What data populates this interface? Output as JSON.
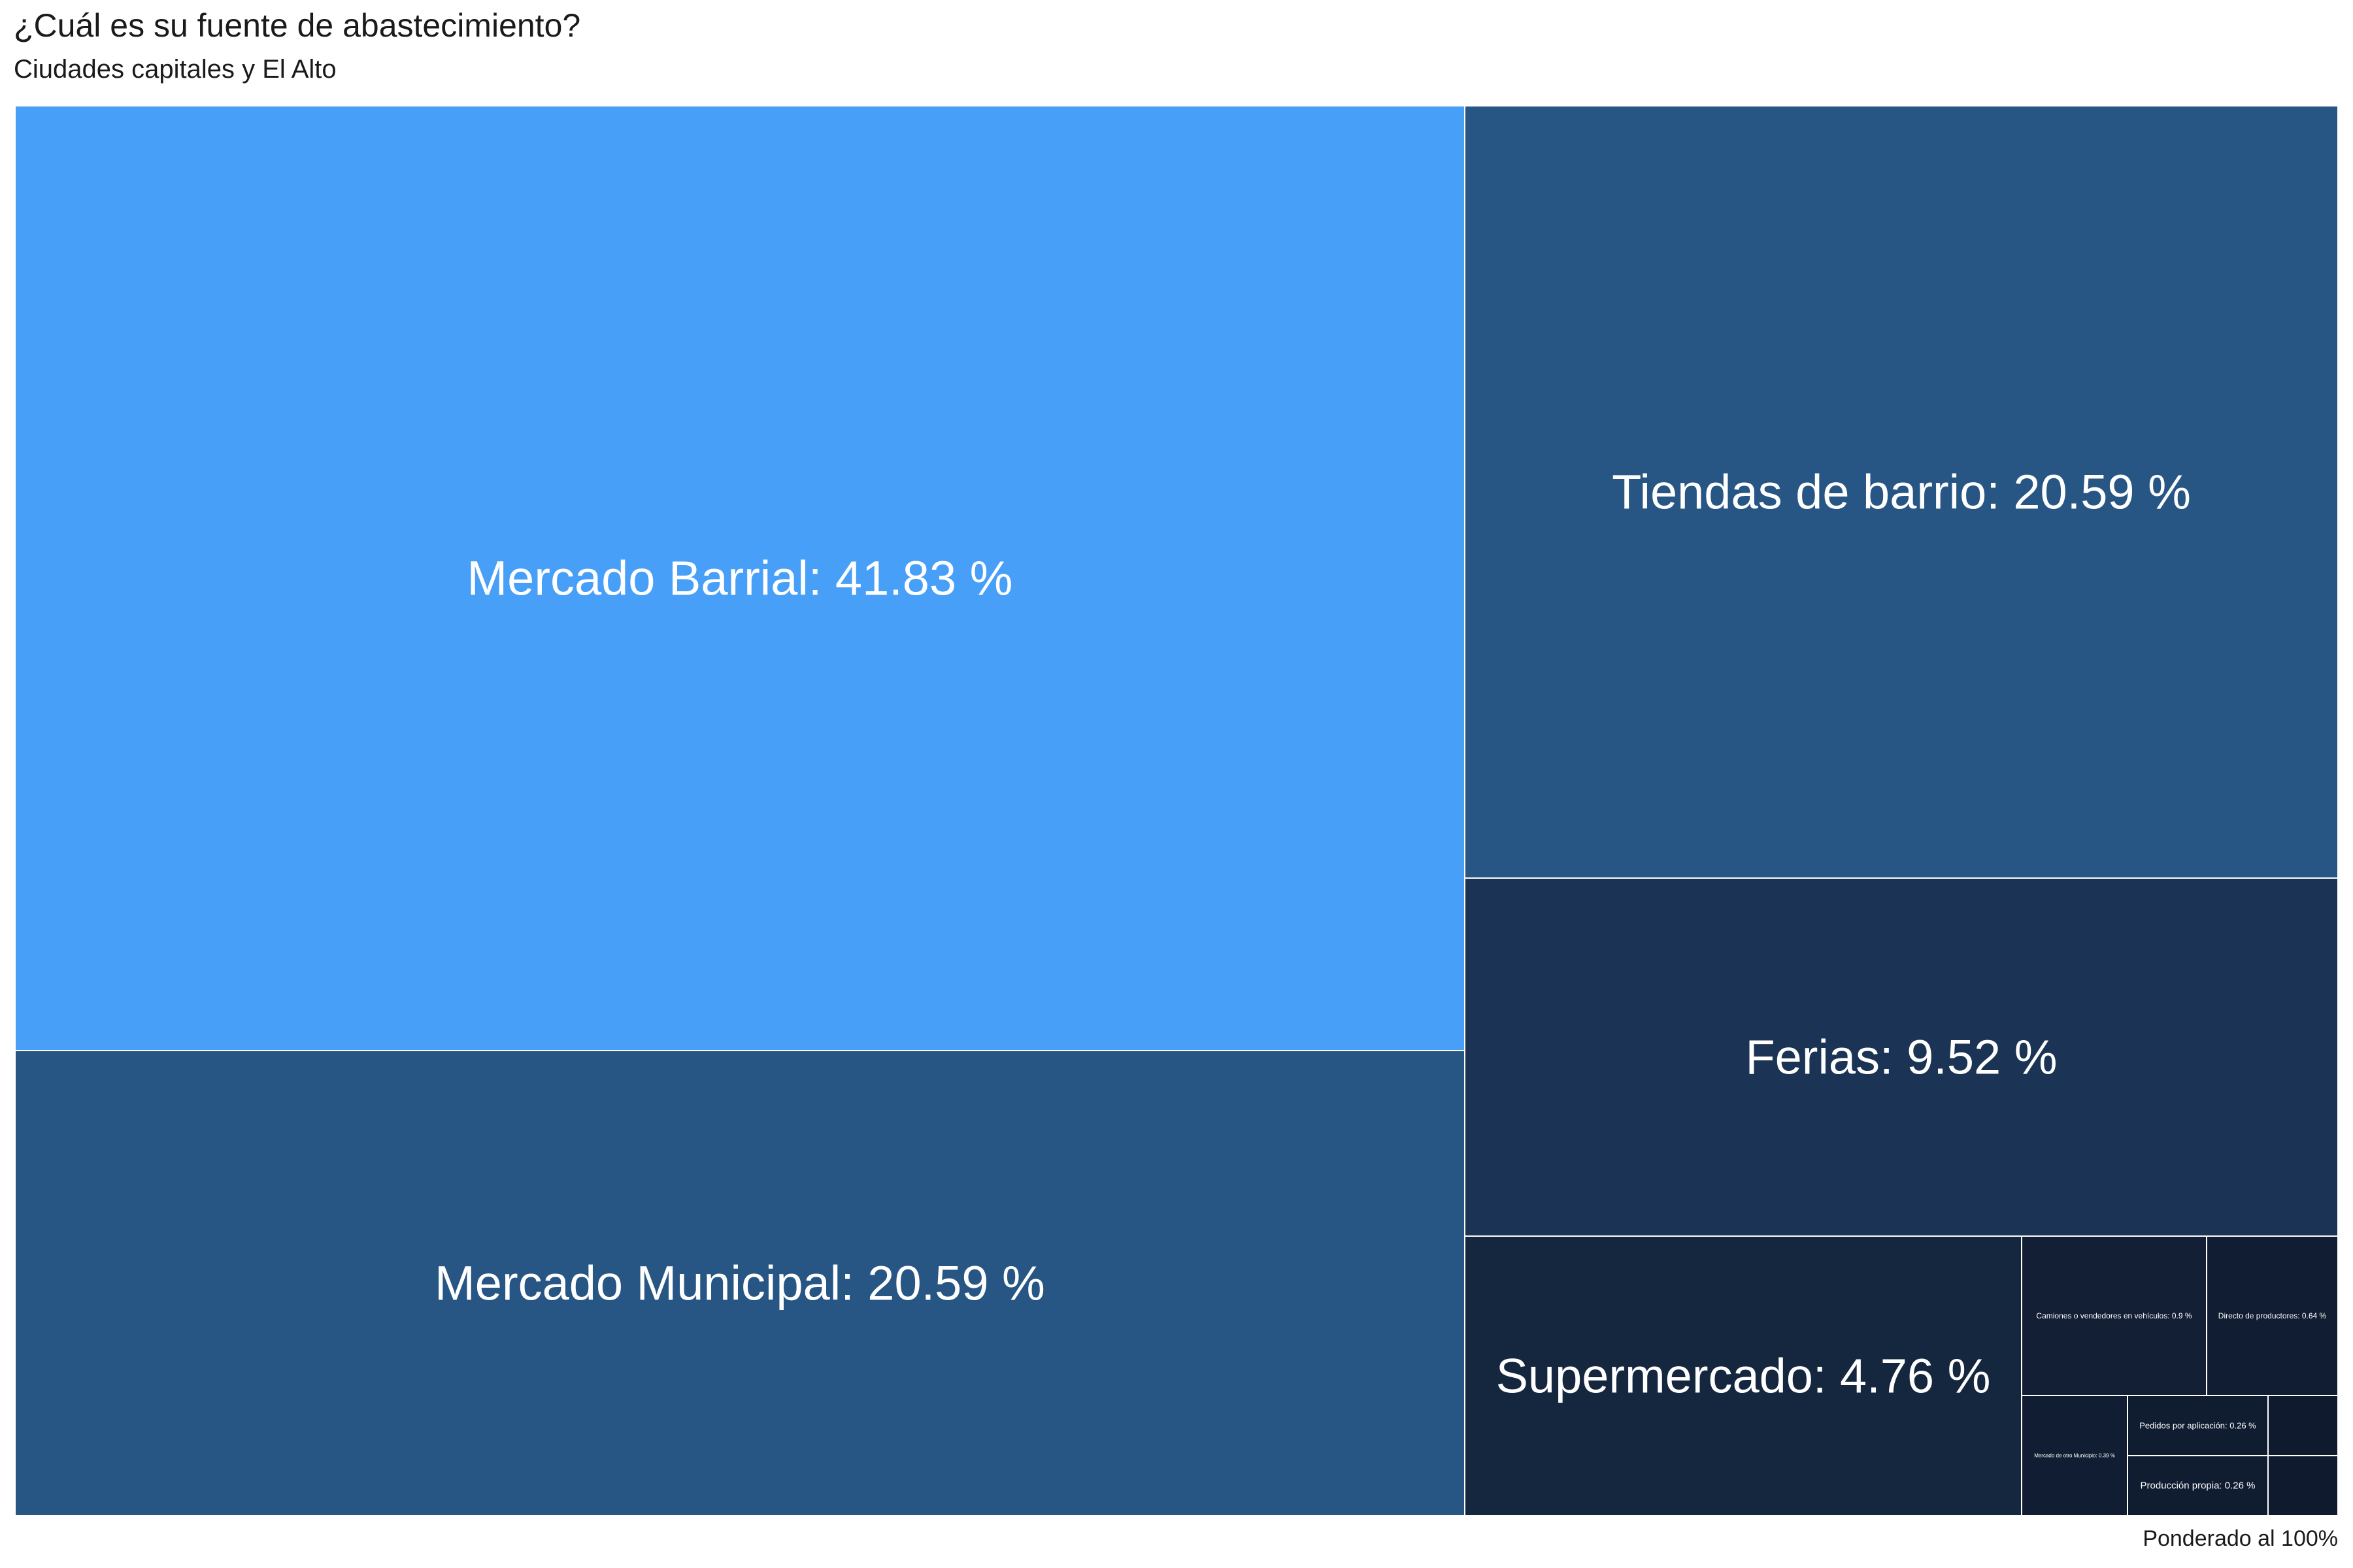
{
  "chart_data": {
    "type": "treemap",
    "title": "¿Cuál es su fuente de abastecimiento?",
    "subtitle": "Ciudades capitales y El Alto",
    "caption": "Ponderado al 100%",
    "unit": "%",
    "items": [
      {
        "label": "Mercado Barrial",
        "value": 41.83,
        "color": "#489ff8"
      },
      {
        "label": "Mercado Municipal",
        "value": 20.59,
        "color": "#275685"
      },
      {
        "label": "Tiendas de barrio",
        "value": 20.59,
        "color": "#275685"
      },
      {
        "label": "Ferias",
        "value": 9.52,
        "color": "#1b3354"
      },
      {
        "label": "Supermercado",
        "value": 4.76,
        "color": "#15263f"
      },
      {
        "label": "Camiones o vendedores en vehículos",
        "value": 0.9,
        "color": "#121f35"
      },
      {
        "label": "Directo de productores",
        "value": 0.64,
        "color": "#111d32"
      },
      {
        "label": "Mercado de otro Municipio",
        "value": 0.39,
        "color": "#111d32"
      },
      {
        "label": "Pedidos por aplicación",
        "value": 0.26,
        "color": "#101c30"
      },
      {
        "label": "Producción propia",
        "value": 0.26,
        "color": "#101c30"
      },
      {
        "label": "",
        "value": null,
        "color": "#0f1a2e"
      },
      {
        "label": "",
        "value": null,
        "color": "#0f1a2e"
      }
    ]
  }
}
